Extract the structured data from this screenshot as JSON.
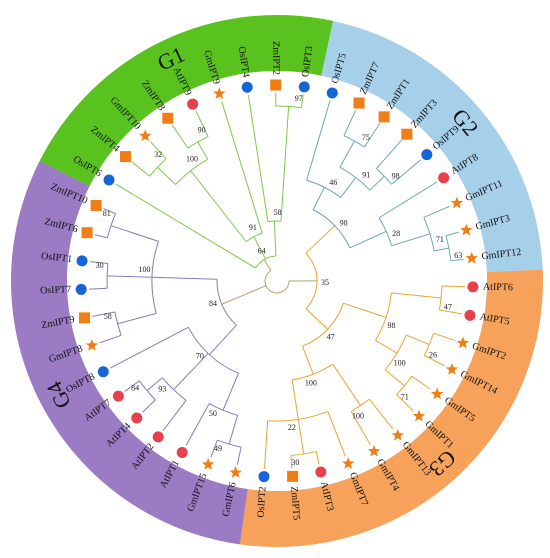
{
  "colors": {
    "G1": "#59c21f",
    "G2": "#a6cfea",
    "G3": "#f6a25a",
    "G4": "#9b7bc4",
    "OsIPT": "#1565d8",
    "ZmIPT": "#f07e14",
    "GmIPT": "#f07e14",
    "AtIPT": "#e8404a"
  },
  "markers": {
    "OsIPT": "circle",
    "ZmIPT": "square",
    "GmIPT": "star",
    "AtIPT": "circle"
  },
  "groups": [
    {
      "label": "G1",
      "key": "G1"
    },
    {
      "label": "G2",
      "key": "G2"
    },
    {
      "label": "G3",
      "key": "G3"
    },
    {
      "label": "G4",
      "key": "G4"
    }
  ],
  "leaves": [
    {
      "name": "OsIPT3",
      "species": "OsIPT",
      "group": "G1"
    },
    {
      "name": "ZmIPT2",
      "species": "ZmIPT",
      "group": "G1"
    },
    {
      "name": "OsIPT4",
      "species": "OsIPT",
      "group": "G1"
    },
    {
      "name": "GmIPT9",
      "species": "GmIPT",
      "group": "G1"
    },
    {
      "name": "AtIPT9",
      "species": "AtIPT",
      "group": "G1"
    },
    {
      "name": "ZmIPT8",
      "species": "ZmIPT",
      "group": "G1"
    },
    {
      "name": "GmIPT10",
      "species": "GmIPT",
      "group": "G1"
    },
    {
      "name": "ZmIPT4",
      "species": "ZmIPT",
      "group": "G1"
    },
    {
      "name": "OsIPT6",
      "species": "OsIPT",
      "group": "G1"
    },
    {
      "name": "ZmIPT10",
      "species": "ZmIPT",
      "group": "G4"
    },
    {
      "name": "ZmIPT6",
      "species": "ZmIPT",
      "group": "G4"
    },
    {
      "name": "OsIPT1",
      "species": "OsIPT",
      "group": "G4"
    },
    {
      "name": "OsIPT7",
      "species": "OsIPT",
      "group": "G4"
    },
    {
      "name": "ZmIPT9",
      "species": "ZmIPT",
      "group": "G4"
    },
    {
      "name": "GmIPT8",
      "species": "GmIPT",
      "group": "G4"
    },
    {
      "name": "OsIPT8",
      "species": "OsIPT",
      "group": "G4"
    },
    {
      "name": "AtIPT7",
      "species": "AtIPT",
      "group": "G4"
    },
    {
      "name": "AtIPT4",
      "species": "AtIPT",
      "group": "G4"
    },
    {
      "name": "AtIPT2",
      "species": "AtIPT",
      "group": "G4"
    },
    {
      "name": "AtIPT1",
      "species": "AtIPT",
      "group": "G4"
    },
    {
      "name": "GmIPT15",
      "species": "GmIPT",
      "group": "G4"
    },
    {
      "name": "GmIPT6",
      "species": "GmIPT",
      "group": "G4"
    },
    {
      "name": "OsIPT2",
      "species": "OsIPT",
      "group": "G3"
    },
    {
      "name": "ZmIPT5",
      "species": "ZmIPT",
      "group": "G3"
    },
    {
      "name": "AtIPT3",
      "species": "AtIPT",
      "group": "G3"
    },
    {
      "name": "GmIPT7",
      "species": "GmIPT",
      "group": "G3"
    },
    {
      "name": "GmIPT4",
      "species": "GmIPT",
      "group": "G3"
    },
    {
      "name": "GmIPT13",
      "species": "GmIPT",
      "group": "G3"
    },
    {
      "name": "GmIPT1",
      "species": "GmIPT",
      "group": "G3"
    },
    {
      "name": "GmIPT5",
      "species": "GmIPT",
      "group": "G3"
    },
    {
      "name": "GmIPT14",
      "species": "GmIPT",
      "group": "G3"
    },
    {
      "name": "GmIPT2",
      "species": "GmIPT",
      "group": "G3"
    },
    {
      "name": "AtIPT5",
      "species": "AtIPT",
      "group": "G3"
    },
    {
      "name": "AtIPT6",
      "species": "AtIPT",
      "group": "G3"
    },
    {
      "name": "GmIPT12",
      "species": "GmIPT",
      "group": "G2"
    },
    {
      "name": "GmIPT3",
      "species": "GmIPT",
      "group": "G2"
    },
    {
      "name": "GmIPT11",
      "species": "GmIPT",
      "group": "G2"
    },
    {
      "name": "AtIPT8",
      "species": "AtIPT",
      "group": "G2"
    },
    {
      "name": "OsIPT9",
      "species": "OsIPT",
      "group": "G2"
    },
    {
      "name": "ZmIPT3",
      "species": "ZmIPT",
      "group": "G2"
    },
    {
      "name": "ZmIPT1",
      "species": "ZmIPT",
      "group": "G2"
    },
    {
      "name": "ZmIPT7",
      "species": "ZmIPT",
      "group": "G2"
    },
    {
      "name": "OsIPT5",
      "species": "OsIPT",
      "group": "G2"
    }
  ],
  "bootstrap": {
    "g1": [
      "58",
      "97",
      "91",
      "100",
      "90",
      "32",
      "84"
    ],
    "g2": [
      "35",
      "98",
      "46",
      "91",
      "98",
      "75",
      "28",
      "71",
      "63"
    ],
    "g3": [
      "47",
      "98",
      "47",
      "100",
      "26",
      "71",
      "100",
      "100",
      "22",
      "30",
      "64"
    ],
    "g4": [
      "100",
      "81",
      "30",
      "58",
      "70",
      "93",
      "84",
      "50",
      "49",
      "100",
      "91",
      "66"
    ]
  }
}
